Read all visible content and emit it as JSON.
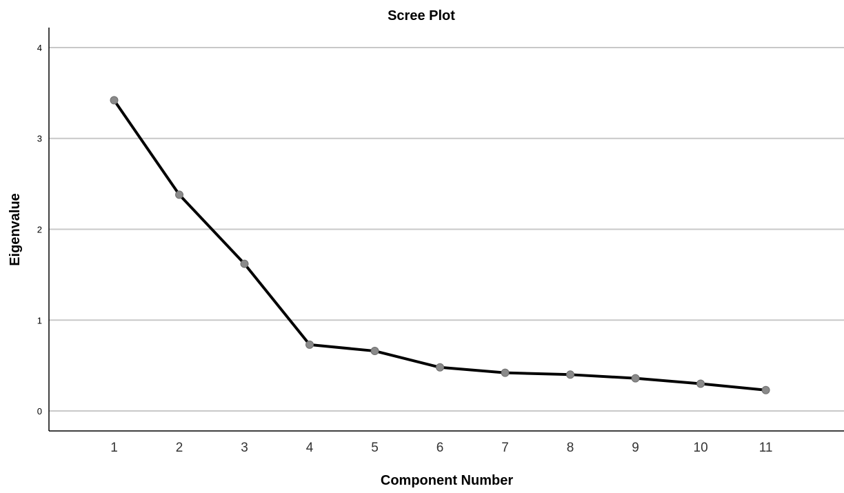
{
  "chart_data": {
    "type": "line",
    "title": "Scree Plot",
    "xlabel": "Component Number",
    "ylabel": "Eigenvalue",
    "x": [
      1,
      2,
      3,
      4,
      5,
      6,
      7,
      8,
      9,
      10,
      11
    ],
    "series": [
      {
        "values": [
          3.42,
          2.38,
          1.62,
          0.73,
          0.66,
          0.48,
          0.42,
          0.4,
          0.36,
          0.3,
          0.23
        ]
      }
    ],
    "y_ticks": [
      0,
      1,
      2,
      3,
      4
    ],
    "x_ticks": [
      "1",
      "2",
      "3",
      "4",
      "5",
      "6",
      "7",
      "8",
      "9",
      "10",
      "11"
    ],
    "ylim": [
      -0.22,
      4.22
    ],
    "xlim": [
      0,
      12.2
    ],
    "grid": "horizontal",
    "colors": {
      "line": "#000000",
      "marker": "#8a8a8a",
      "grid": "#c8c8c8"
    }
  }
}
